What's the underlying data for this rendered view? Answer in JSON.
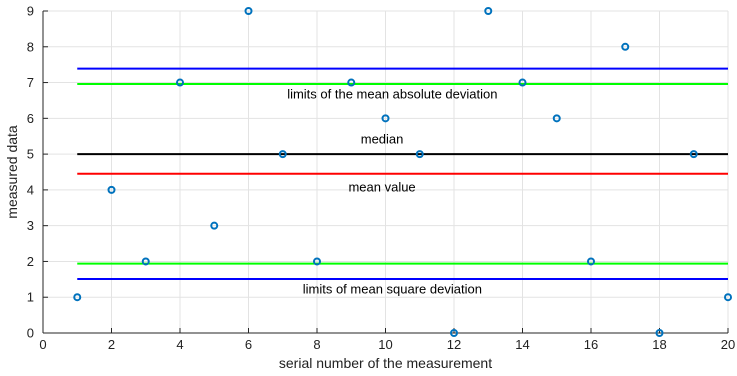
{
  "chart_data": {
    "type": "scatter",
    "xlabel": "serial number of the measurement",
    "ylabel": "measured data",
    "xlim": [
      0,
      20
    ],
    "ylim": [
      0,
      9
    ],
    "xticks": [
      0,
      2,
      4,
      6,
      8,
      10,
      12,
      14,
      16,
      18,
      20
    ],
    "yticks": [
      0,
      1,
      2,
      3,
      4,
      5,
      6,
      7,
      8,
      9
    ],
    "grid": true,
    "series": [
      {
        "x": [
          1,
          2,
          3,
          4,
          5,
          6,
          7,
          8,
          9,
          10,
          11,
          12,
          13,
          14,
          15,
          16,
          17,
          18,
          19,
          20
        ],
        "y": [
          1,
          4,
          2,
          7,
          3,
          9,
          5,
          2,
          7,
          6,
          5,
          0,
          9,
          7,
          6,
          2,
          8,
          0,
          5,
          1
        ],
        "color": "#0072bd"
      }
    ],
    "hlines": [
      {
        "y": 7.39,
        "color": "#0000ff"
      },
      {
        "y": 6.96,
        "color": "#00ff00"
      },
      {
        "y": 5.0,
        "color": "#000000"
      },
      {
        "y": 4.45,
        "color": "#ff0000"
      },
      {
        "y": 1.94,
        "color": "#00ff00"
      },
      {
        "y": 1.51,
        "color": "#0000ff"
      }
    ],
    "hline_x_range": [
      1,
      20
    ],
    "annotations": [
      {
        "text": "limits of the mean absolute deviation",
        "x": 10.2,
        "y": 6.55
      },
      {
        "text": "median",
        "x": 9.9,
        "y": 5.3
      },
      {
        "text": "mean value",
        "x": 9.9,
        "y": 3.95
      },
      {
        "text": "limits of mean square deviation",
        "x": 10.2,
        "y": 1.1
      }
    ],
    "colors": {
      "grid": "#e3e3e3",
      "axis": "#262626",
      "marker": "#0072bd"
    }
  }
}
